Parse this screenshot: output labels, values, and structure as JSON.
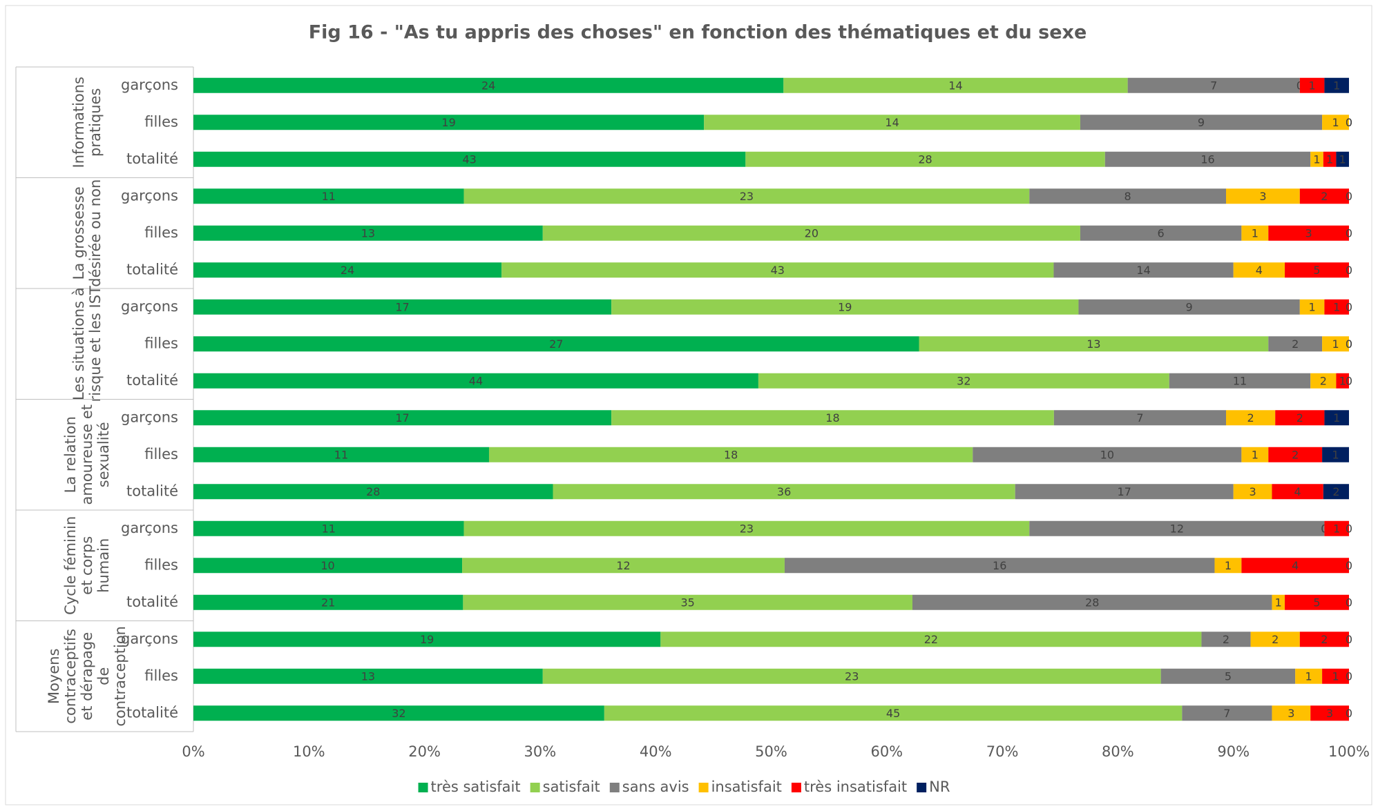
{
  "chart_data": {
    "type": "bar",
    "orientation": "horizontal",
    "stack": "percent",
    "title": "Fig 16 - \"As tu appris des choses\" en fonction des thématiques et du sexe",
    "groups": [
      {
        "lines": [
          "Informations",
          "pratiques"
        ],
        "categories": [
          "garçons",
          "filles",
          "totalité"
        ]
      },
      {
        "lines": [
          "La grossesse",
          "désirée ou non"
        ],
        "categories": [
          "garçons",
          "filles",
          "totalité"
        ]
      },
      {
        "lines": [
          "Les situations à",
          "risque et les IST"
        ],
        "categories": [
          "garçons",
          "filles",
          "totalité"
        ]
      },
      {
        "lines": [
          "La relation",
          "amoureuse et",
          "sexualité"
        ],
        "categories": [
          "garçons",
          "filles",
          "totalité"
        ]
      },
      {
        "lines": [
          "Cycle féminin",
          "et corps",
          "humain"
        ],
        "categories": [
          "garçons",
          "filles",
          "totalité"
        ]
      },
      {
        "lines": [
          "Moyens",
          "contraceptifs",
          "et dérapage",
          "de",
          "contraception"
        ],
        "categories": [
          "garçons",
          "filles",
          "totalité"
        ]
      }
    ],
    "series": [
      {
        "name": "très satisfait",
        "color": "#00b050",
        "values": [
          24,
          19,
          43,
          11,
          13,
          24,
          17,
          27,
          44,
          17,
          11,
          28,
          11,
          10,
          21,
          19,
          13,
          32
        ]
      },
      {
        "name": "satisfait",
        "color": "#92d050",
        "values": [
          14,
          14,
          28,
          23,
          20,
          43,
          19,
          13,
          32,
          18,
          18,
          36,
          23,
          12,
          35,
          22,
          23,
          45
        ]
      },
      {
        "name": "sans avis",
        "color": "#7f7f7f",
        "values": [
          7,
          9,
          16,
          8,
          6,
          14,
          9,
          2,
          11,
          7,
          10,
          17,
          12,
          16,
          28,
          2,
          5,
          7
        ]
      },
      {
        "name": "insatisfait",
        "color": "#ffc000",
        "values": [
          0,
          1,
          1,
          3,
          1,
          4,
          1,
          1,
          2,
          2,
          1,
          3,
          0,
          1,
          1,
          2,
          1,
          3
        ]
      },
      {
        "name": "très insatisfait",
        "color": "#ff0000",
        "values": [
          1,
          0,
          1,
          2,
          3,
          5,
          1,
          0,
          1,
          2,
          2,
          4,
          1,
          4,
          5,
          2,
          1,
          3
        ]
      },
      {
        "name": "NR",
        "color": "#002060",
        "values": [
          1,
          0,
          1,
          0,
          0,
          0,
          0,
          0,
          0,
          1,
          1,
          2,
          0,
          0,
          0,
          0,
          0,
          0
        ]
      }
    ],
    "xlim": [
      0,
      100
    ],
    "xticks": [
      {
        "value": 0,
        "label": "0%"
      },
      {
        "value": 10,
        "label": "10%"
      },
      {
        "value": 20,
        "label": "20%"
      },
      {
        "value": 30,
        "label": "30%"
      },
      {
        "value": 40,
        "label": "40%"
      },
      {
        "value": 50,
        "label": "50%"
      },
      {
        "value": 60,
        "label": "60%"
      },
      {
        "value": 70,
        "label": "70%"
      },
      {
        "value": 80,
        "label": "80%"
      },
      {
        "value": 90,
        "label": "90%"
      },
      {
        "value": 100,
        "label": "100%"
      }
    ],
    "grid": false,
    "legend": "bottom"
  }
}
